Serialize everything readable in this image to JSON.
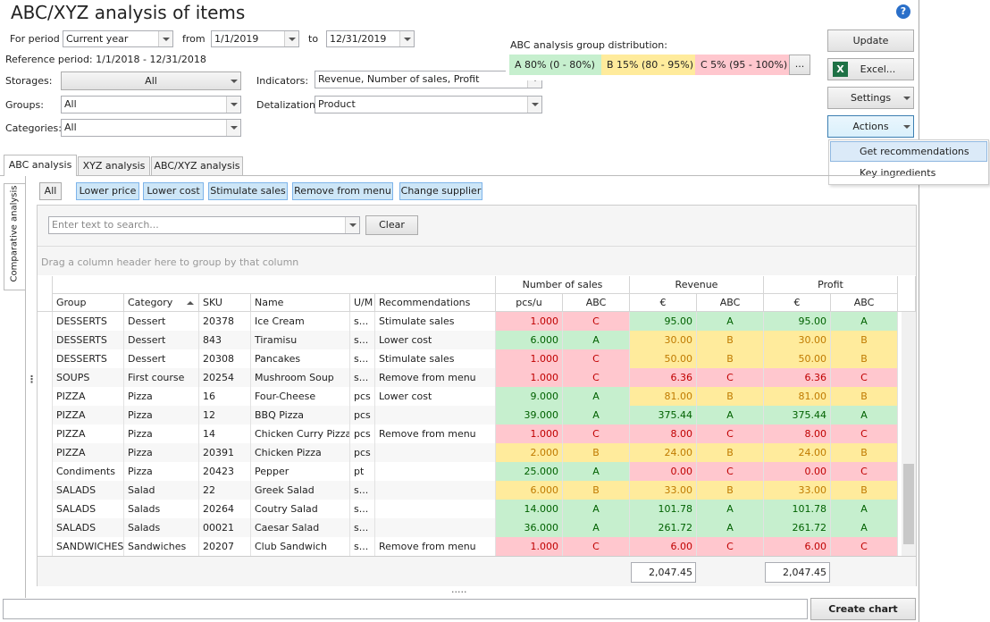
{
  "header": {
    "title": "ABC/XYZ analysis of items"
  },
  "filters": {
    "for_period_label": "For period",
    "period": "Current year",
    "from_label": "from",
    "from": "1/1/2019",
    "to_label": "to",
    "to": "12/31/2019",
    "reference": "Reference period: 1/1/2018 - 12/31/2018",
    "storages_label": "Storages:",
    "storages": "All",
    "groups_label": "Groups:",
    "groups": "All",
    "categories_label": "Categories:",
    "categories": "All",
    "indicators_label": "Indicators:",
    "indicators": "Revenue, Number of sales, Profit",
    "detalization_label": "Detalization:",
    "detalization": "Product"
  },
  "distribution": {
    "label": "ABC analysis group distribution:",
    "groups": [
      "A 80% (0 - 80%)",
      "B 15% (80 - 95%)",
      "C 5% (95 - 100%)"
    ],
    "more": "..."
  },
  "buttons": {
    "update": "Update",
    "excel": "Excel...",
    "settings": "Settings",
    "actions": "Actions"
  },
  "menu": [
    "Get recommendations",
    "Key ingredients"
  ],
  "tabs": [
    "ABC analysis",
    "XYZ analysis",
    "ABC/XYZ analysis"
  ],
  "side_tab": "Comparative analysis",
  "filter_buttons": [
    "All",
    "Lower price",
    "Lower cost",
    "Stimulate sales",
    "Remove from menu",
    "Change supplier"
  ],
  "search": {
    "placeholder": "Enter text to search...",
    "clear": "Clear"
  },
  "group_hint": "Drag a column header here to group by that column",
  "table": {
    "bands": [
      "Number of sales",
      "Revenue",
      "Profit"
    ],
    "columns": [
      "Group",
      "Category",
      "SKU",
      "Name",
      "U/M",
      "Recommendations",
      "pcs/u",
      "ABC",
      "€",
      "ABC",
      "€",
      "ABC"
    ],
    "rows": [
      [
        "DESSERTS",
        "Dessert",
        "20378",
        "Ice Cream",
        "s...",
        "Stimulate sales",
        "1.000",
        "C",
        "95.00",
        "A",
        "95.00",
        "A"
      ],
      [
        "DESSERTS",
        "Dessert",
        "843",
        "Tiramisu",
        "s...",
        "Lower cost",
        "6.000",
        "A",
        "30.00",
        "B",
        "30.00",
        "B"
      ],
      [
        "DESSERTS",
        "Dessert",
        "20308",
        "Pancakes",
        "s...",
        "Stimulate sales",
        "1.000",
        "C",
        "50.00",
        "B",
        "50.00",
        "B"
      ],
      [
        "SOUPS",
        "First course",
        "20254",
        "Mushroom Soup",
        "s...",
        "Remove from menu",
        "1.000",
        "C",
        "6.36",
        "C",
        "6.36",
        "C"
      ],
      [
        "PIZZA",
        "Pizza",
        "16",
        "Four-Cheese",
        "pcs",
        "Lower cost",
        "9.000",
        "A",
        "81.00",
        "B",
        "81.00",
        "B"
      ],
      [
        "PIZZA",
        "Pizza",
        "12",
        "BBQ Pizza",
        "pcs",
        null,
        "39.000",
        "A",
        "375.44",
        "A",
        "375.44",
        "A"
      ],
      [
        "PIZZA",
        "Pizza",
        "14",
        "Chicken Curry Pizza",
        "pcs",
        "Remove from menu",
        "1.000",
        "C",
        "8.00",
        "C",
        "8.00",
        "C"
      ],
      [
        "PIZZA",
        "Pizza",
        "20391",
        "Chicken Pizza",
        "pcs",
        null,
        "2.000",
        "B",
        "24.00",
        "B",
        "24.00",
        "B"
      ],
      [
        "Condiments",
        "Pizza",
        "20423",
        "Pepper",
        "pt",
        null,
        "25.000",
        "A",
        "0.00",
        "C",
        "0.00",
        "C"
      ],
      [
        "SALADS",
        "Salad",
        "22",
        "Greek Salad",
        "s...",
        null,
        "6.000",
        "B",
        "33.00",
        "B",
        "33.00",
        "B"
      ],
      [
        "SALADS",
        "Salads",
        "20264",
        "Coutry Salad",
        "s...",
        null,
        "14.000",
        "A",
        "101.78",
        "A",
        "101.78",
        "A"
      ],
      [
        "SALADS",
        "Salads",
        "00021",
        "Caesar Salad",
        "s...",
        null,
        "36.000",
        "A",
        "261.72",
        "A",
        "261.72",
        "A"
      ],
      [
        "SANDWICHES",
        "Sandwiches",
        "20207",
        "Club Sandwich",
        "s...",
        "Remove from menu",
        "1.000",
        "C",
        "6.00",
        "C",
        "6.00",
        "C"
      ]
    ],
    "totals": [
      "2,047.45",
      "2,047.45"
    ]
  },
  "create_chart": "Create chart"
}
